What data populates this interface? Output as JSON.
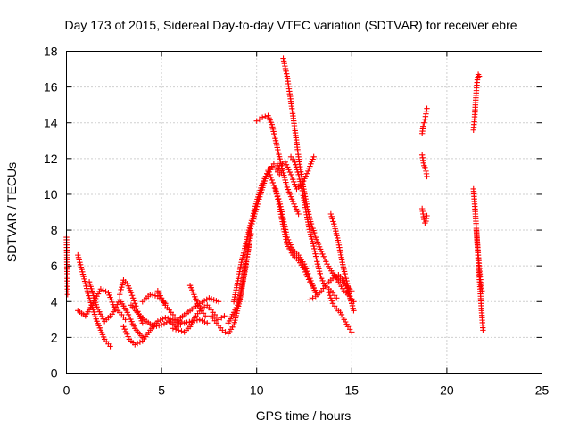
{
  "chart_data": {
    "type": "scatter",
    "title": "Day 173 of 2015, Sidereal Day-to-day VTEC variation (SDTVAR) for receiver ebre",
    "xlabel": "GPS time / hours",
    "ylabel": "SDTVAR / TECUs",
    "xlim": [
      0,
      25
    ],
    "ylim": [
      0,
      18
    ],
    "xticks": [
      0,
      5,
      10,
      15,
      20,
      25
    ],
    "yticks": [
      0,
      2,
      4,
      6,
      8,
      10,
      12,
      14,
      16,
      18
    ],
    "grid": true,
    "marker": "plus",
    "color": "#ff0000",
    "segments": [
      {
        "x": [
          0.0,
          0.02,
          0.04,
          0.06
        ],
        "y": [
          7.6,
          6.6,
          5.3,
          4.4
        ]
      },
      {
        "x": [
          0.6,
          0.9,
          1.2,
          1.6,
          2.0,
          2.3
        ],
        "y": [
          6.6,
          5.4,
          4.2,
          2.9,
          1.9,
          1.5
        ]
      },
      {
        "x": [
          0.6,
          1.0,
          1.4,
          1.8,
          2.2,
          2.5,
          2.8,
          3.1
        ],
        "y": [
          3.5,
          3.2,
          3.9,
          4.7,
          4.5,
          3.7,
          3.4,
          3.0
        ]
      },
      {
        "x": [
          1.2,
          1.6,
          2.0,
          2.4,
          2.8,
          3.2,
          3.6,
          4.0
        ],
        "y": [
          5.1,
          3.7,
          2.9,
          3.3,
          4.1,
          3.4,
          2.5,
          2.0
        ]
      },
      {
        "x": [
          2.8,
          3.0,
          3.2,
          3.4,
          3.6,
          3.8,
          4.0
        ],
        "y": [
          4.4,
          5.2,
          5.0,
          4.5,
          3.9,
          3.3,
          2.8
        ]
      },
      {
        "x": [
          3.0,
          3.3,
          3.6,
          4.0,
          4.4,
          4.8,
          5.2,
          5.6,
          6.0
        ],
        "y": [
          2.6,
          1.9,
          1.6,
          1.8,
          2.4,
          2.9,
          3.1,
          3.0,
          2.7
        ]
      },
      {
        "x": [
          3.4,
          3.8,
          4.2,
          4.6,
          5.0,
          5.4,
          5.8
        ],
        "y": [
          3.8,
          3.3,
          2.9,
          2.6,
          2.7,
          2.9,
          2.6
        ]
      },
      {
        "x": [
          4.0,
          4.4,
          4.8,
          5.2
        ],
        "y": [
          4.0,
          4.4,
          4.3,
          3.9
        ]
      },
      {
        "x": [
          4.8,
          5.0,
          5.2,
          5.5,
          5.8,
          6.2,
          6.6,
          7.0,
          7.4
        ],
        "y": [
          4.6,
          4.2,
          3.8,
          3.4,
          3.0,
          2.8,
          2.9,
          3.0,
          2.8
        ]
      },
      {
        "x": [
          5.6,
          5.9,
          6.2,
          6.5,
          6.8,
          7.1,
          7.4,
          7.7,
          8.0,
          8.3
        ],
        "y": [
          2.5,
          2.4,
          2.3,
          2.6,
          3.2,
          3.6,
          3.8,
          3.4,
          3.0,
          3.2
        ]
      },
      {
        "x": [
          6.5,
          6.7,
          6.9,
          7.1,
          7.3
        ],
        "y": [
          4.9,
          4.4,
          3.9,
          3.5,
          3.2
        ]
      },
      {
        "x": [
          6.0,
          6.5,
          7.0,
          7.5,
          8.0
        ],
        "y": [
          3.1,
          3.5,
          3.9,
          4.2,
          4.0
        ]
      },
      {
        "x": [
          7.6,
          7.9,
          8.2,
          8.5,
          8.8,
          9.1,
          9.4,
          9.7
        ],
        "y": [
          3.2,
          2.8,
          2.4,
          2.2,
          2.7,
          4.0,
          6.0,
          7.8
        ]
      },
      {
        "x": [
          8.5,
          8.8,
          9.0,
          9.2,
          9.4,
          9.6
        ],
        "y": [
          2.8,
          3.4,
          3.8,
          4.6,
          5.8,
          7.2
        ]
      },
      {
        "x": [
          8.8,
          9.2,
          9.6,
          10.0,
          10.3,
          10.6,
          10.9,
          11.1,
          11.3
        ],
        "y": [
          4.0,
          6.2,
          8.0,
          9.6,
          10.6,
          11.3,
          11.7,
          11.6,
          11.2
        ]
      },
      {
        "x": [
          9.6,
          9.9,
          10.2,
          10.5,
          10.8,
          11.0,
          11.2
        ],
        "y": [
          7.8,
          8.9,
          10.0,
          11.0,
          11.5,
          11.4,
          11.1
        ]
      },
      {
        "x": [
          10.0,
          10.3,
          10.6,
          10.8,
          11.0,
          11.3,
          11.6,
          11.9,
          12.2
        ],
        "y": [
          14.1,
          14.3,
          14.4,
          13.9,
          13.0,
          11.6,
          10.4,
          9.6,
          8.9
        ]
      },
      {
        "x": [
          10.6,
          10.8,
          11.0,
          11.2,
          11.4,
          11.6,
          11.9,
          12.2,
          12.5,
          12.8,
          13.1
        ],
        "y": [
          11.4,
          10.8,
          10.2,
          9.6,
          8.6,
          7.6,
          6.9,
          6.6,
          6.1,
          5.3,
          4.5
        ]
      },
      {
        "x": [
          11.0,
          11.2,
          11.4,
          11.6,
          11.9,
          12.2,
          12.5,
          12.8,
          13.2
        ],
        "y": [
          10.3,
          9.3,
          8.2,
          7.2,
          6.6,
          6.3,
          5.8,
          5.1,
          4.4
        ]
      },
      {
        "x": [
          11.4,
          11.6,
          11.8,
          12.0,
          12.2,
          12.4,
          12.6,
          12.8,
          13.1,
          13.4,
          13.7,
          14.0,
          14.3,
          14.6,
          15.0
        ],
        "y": [
          17.6,
          16.6,
          15.2,
          13.7,
          12.1,
          10.7,
          9.6,
          8.6,
          7.6,
          6.8,
          6.1,
          5.6,
          5.3,
          5.0,
          4.6
        ]
      },
      {
        "x": [
          11.2,
          11.5,
          11.8,
          12.1,
          12.4,
          12.7,
          13.0
        ],
        "y": [
          11.6,
          11.8,
          11.1,
          10.3,
          10.6,
          11.3,
          12.1
        ]
      },
      {
        "x": [
          11.8,
          12.0,
          12.2,
          12.4,
          12.6,
          12.8,
          13.0,
          13.2,
          13.4,
          13.6,
          13.8,
          14.0,
          14.2
        ],
        "y": [
          12.1,
          11.8,
          11.1,
          10.2,
          9.0,
          7.9,
          7.1,
          6.1,
          5.3,
          4.9,
          4.7,
          4.5,
          4.2
        ]
      },
      {
        "x": [
          12.8,
          13.1,
          13.4,
          13.7,
          14.0,
          14.3,
          14.6,
          14.8,
          15.0
        ],
        "y": [
          4.1,
          4.3,
          4.6,
          5.0,
          5.3,
          5.5,
          5.2,
          4.6,
          3.9
        ]
      },
      {
        "x": [
          13.9,
          14.1,
          14.3,
          14.5,
          14.7,
          14.9,
          15.1
        ],
        "y": [
          8.9,
          8.2,
          7.3,
          6.2,
          5.3,
          4.3,
          3.5
        ]
      },
      {
        "x": [
          13.8,
          14.0,
          14.2,
          14.4,
          14.6,
          14.8,
          15.0
        ],
        "y": [
          4.5,
          3.9,
          3.6,
          3.4,
          3.0,
          2.6,
          2.3
        ]
      },
      {
        "x": [
          14.0,
          14.3,
          14.6,
          14.9,
          15.1
        ],
        "y": [
          5.6,
          5.1,
          4.6,
          4.3,
          4.0
        ]
      },
      {
        "x": [
          18.7,
          18.75,
          18.8,
          18.85,
          18.9,
          18.95
        ],
        "y": [
          13.4,
          13.8,
          14.0,
          14.2,
          14.5,
          14.8
        ]
      },
      {
        "x": [
          18.7,
          18.75,
          18.8,
          18.85,
          18.9,
          18.95
        ],
        "y": [
          12.2,
          11.9,
          11.6,
          11.5,
          11.3,
          11.0
        ]
      },
      {
        "x": [
          18.7,
          18.75,
          18.8,
          18.85,
          18.9,
          18.95
        ],
        "y": [
          9.2,
          8.9,
          8.6,
          8.4,
          8.5,
          8.8
        ]
      },
      {
        "x": [
          21.4,
          21.45,
          21.5,
          21.55,
          21.6,
          21.65,
          21.7
        ],
        "y": [
          13.6,
          14.2,
          15.0,
          15.8,
          16.4,
          16.7,
          16.6
        ]
      },
      {
        "x": [
          21.4,
          21.45,
          21.5,
          21.55,
          21.6,
          21.65,
          21.7,
          21.75,
          21.8,
          21.85,
          21.9
        ],
        "y": [
          10.3,
          9.6,
          8.9,
          8.1,
          7.2,
          6.3,
          5.5,
          4.7,
          3.9,
          3.1,
          2.4
        ]
      },
      {
        "x": [
          21.55,
          21.6,
          21.65,
          21.7,
          21.75,
          21.8,
          21.85
        ],
        "y": [
          8.0,
          7.3,
          6.6,
          6.0,
          5.4,
          4.9,
          4.6
        ]
      }
    ]
  }
}
